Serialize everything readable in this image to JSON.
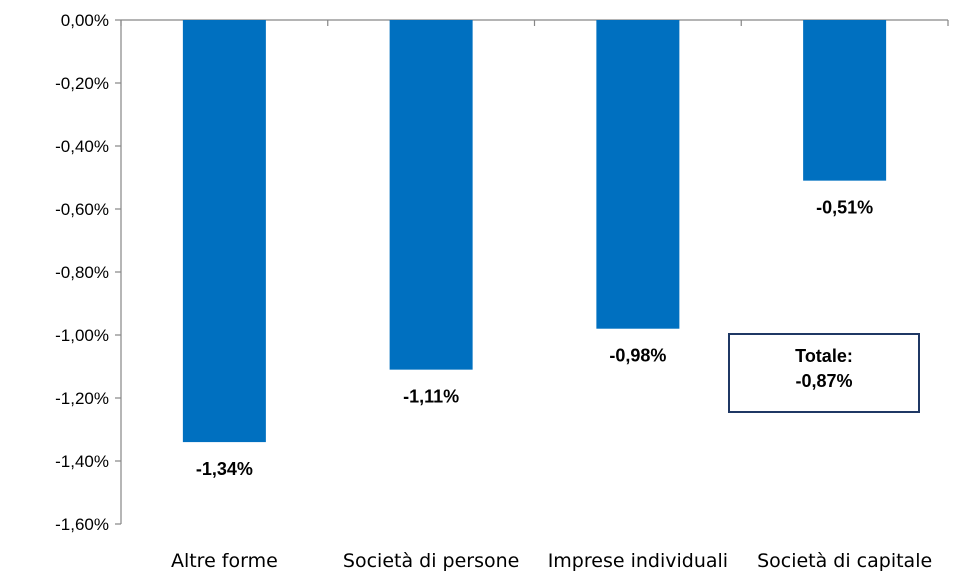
{
  "chart_data": {
    "type": "bar",
    "categories": [
      "Altre forme",
      "Società di persone",
      "Imprese individuali",
      "Società di capitale"
    ],
    "values": [
      -1.34,
      -1.11,
      -0.98,
      -0.51
    ],
    "value_labels": [
      "-1,34%",
      "-1,11%",
      "-0,98%",
      "-0,51%"
    ],
    "ylim": [
      -1.6,
      0
    ],
    "yticks": [
      0,
      -0.2,
      -0.4,
      -0.6,
      -0.8,
      -1.0,
      -1.2,
      -1.4,
      -1.6
    ],
    "ytick_labels": [
      "0,00%",
      "-0,20%",
      "-0,40%",
      "-0,60%",
      "-0,80%",
      "-1,00%",
      "-1,20%",
      "-1,40%",
      "-1,60%"
    ],
    "title": "",
    "xlabel": "",
    "ylabel": "",
    "grid": false,
    "bar_color": "#0070C0",
    "annotation": {
      "line1": "Totale:",
      "line2": "-0,87%",
      "border_color": "#1F3864"
    }
  }
}
